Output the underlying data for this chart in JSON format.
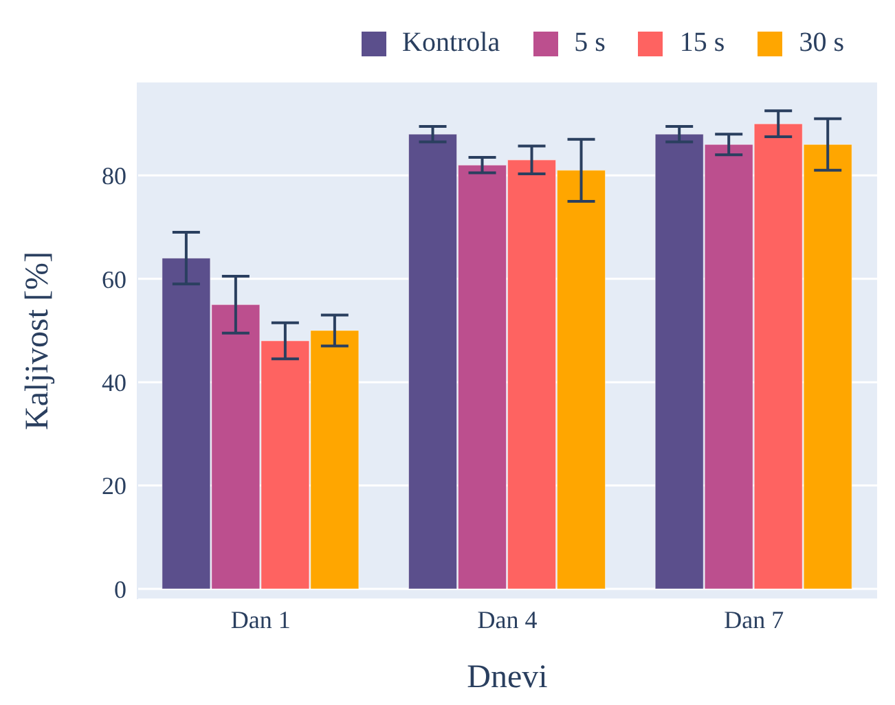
{
  "chart_data": {
    "type": "bar",
    "xlabel": "Dnevi",
    "ylabel": "Kaljivost [%]",
    "categories": [
      "Dan 1",
      "Dan 4",
      "Dan 7"
    ],
    "series": [
      {
        "name": "Kontrola",
        "color": "#5b4f8c",
        "values": [
          64,
          88,
          88
        ],
        "errors": [
          5,
          1.5,
          1.5
        ]
      },
      {
        "name": "5 s",
        "color": "#bc4f8e",
        "values": [
          55,
          82,
          86
        ],
        "errors": [
          5.5,
          1.5,
          2
        ]
      },
      {
        "name": "15 s",
        "color": "#fe6361",
        "values": [
          48,
          83,
          90
        ],
        "errors": [
          3.5,
          2.7,
          2.5
        ]
      },
      {
        "name": "30 s",
        "color": "#ffa600",
        "values": [
          50,
          81,
          86
        ],
        "errors": [
          3,
          6,
          5
        ]
      }
    ],
    "ylim": [
      -2,
      98
    ],
    "yticks": [
      0,
      20,
      40,
      60,
      80
    ],
    "grid": "y",
    "legend": "top right"
  }
}
